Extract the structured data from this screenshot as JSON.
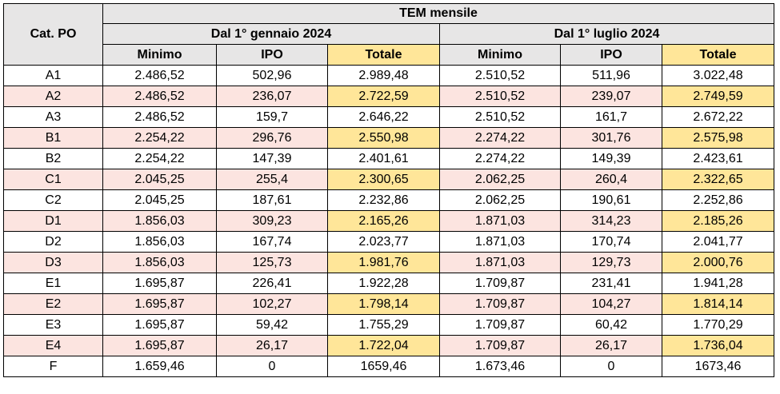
{
  "header": {
    "cat_label": "Cat. PO",
    "group_title": "TEM mensile",
    "period_1": "Dal 1° gennaio 2024",
    "period_2": "Dal 1° luglio 2024",
    "col_min": "Minimo",
    "col_ipo": "IPO",
    "col_tot": "Totale"
  },
  "colors": {
    "header_gray": "#e7e6e6",
    "row_pink": "#fce4e0",
    "totale_yellow": "#ffe699"
  },
  "rows": [
    {
      "cat": "A1",
      "min1": "2.486,52",
      "ipo1": "502,96",
      "tot1": "2.989,48",
      "min2": "2.510,52",
      "ipo2": "511,96",
      "tot2": "3.022,48"
    },
    {
      "cat": "A2",
      "min1": "2.486,52",
      "ipo1": "236,07",
      "tot1": "2.722,59",
      "min2": "2.510,52",
      "ipo2": "239,07",
      "tot2": "2.749,59"
    },
    {
      "cat": "A3",
      "min1": "2.486,52",
      "ipo1": "159,7",
      "tot1": "2.646,22",
      "min2": "2.510,52",
      "ipo2": "161,7",
      "tot2": "2.672,22"
    },
    {
      "cat": "B1",
      "min1": "2.254,22",
      "ipo1": "296,76",
      "tot1": "2.550,98",
      "min2": "2.274,22",
      "ipo2": "301,76",
      "tot2": "2.575,98"
    },
    {
      "cat": "B2",
      "min1": "2.254,22",
      "ipo1": "147,39",
      "tot1": "2.401,61",
      "min2": "2.274,22",
      "ipo2": "149,39",
      "tot2": "2.423,61"
    },
    {
      "cat": "C1",
      "min1": "2.045,25",
      "ipo1": "255,4",
      "tot1": "2.300,65",
      "min2": "2.062,25",
      "ipo2": "260,4",
      "tot2": "2.322,65"
    },
    {
      "cat": "C2",
      "min1": "2.045,25",
      "ipo1": "187,61",
      "tot1": "2.232,86",
      "min2": "2.062,25",
      "ipo2": "190,61",
      "tot2": "2.252,86"
    },
    {
      "cat": "D1",
      "min1": "1.856,03",
      "ipo1": "309,23",
      "tot1": "2.165,26",
      "min2": "1.871,03",
      "ipo2": "314,23",
      "tot2": "2.185,26"
    },
    {
      "cat": "D2",
      "min1": "1.856,03",
      "ipo1": "167,74",
      "tot1": "2.023,77",
      "min2": "1.871,03",
      "ipo2": "170,74",
      "tot2": "2.041,77"
    },
    {
      "cat": "D3",
      "min1": "1.856,03",
      "ipo1": "125,73",
      "tot1": "1.981,76",
      "min2": "1.871,03",
      "ipo2": "129,73",
      "tot2": "2.000,76"
    },
    {
      "cat": "E1",
      "min1": "1.695,87",
      "ipo1": "226,41",
      "tot1": "1.922,28",
      "min2": "1.709,87",
      "ipo2": "231,41",
      "tot2": "1.941,28"
    },
    {
      "cat": "E2",
      "min1": "1.695,87",
      "ipo1": "102,27",
      "tot1": "1.798,14",
      "min2": "1.709,87",
      "ipo2": "104,27",
      "tot2": "1.814,14"
    },
    {
      "cat": "E3",
      "min1": "1.695,87",
      "ipo1": "59,42",
      "tot1": "1.755,29",
      "min2": "1.709,87",
      "ipo2": "60,42",
      "tot2": "1.770,29"
    },
    {
      "cat": "E4",
      "min1": "1.695,87",
      "ipo1": "26,17",
      "tot1": "1.722,04",
      "min2": "1.709,87",
      "ipo2": "26,17",
      "tot2": "1.736,04"
    },
    {
      "cat": "F",
      "min1": "1.659,46",
      "ipo1": "0",
      "tot1": "1659,46",
      "min2": "1.673,46",
      "ipo2": "0",
      "tot2": "1673,46"
    }
  ]
}
